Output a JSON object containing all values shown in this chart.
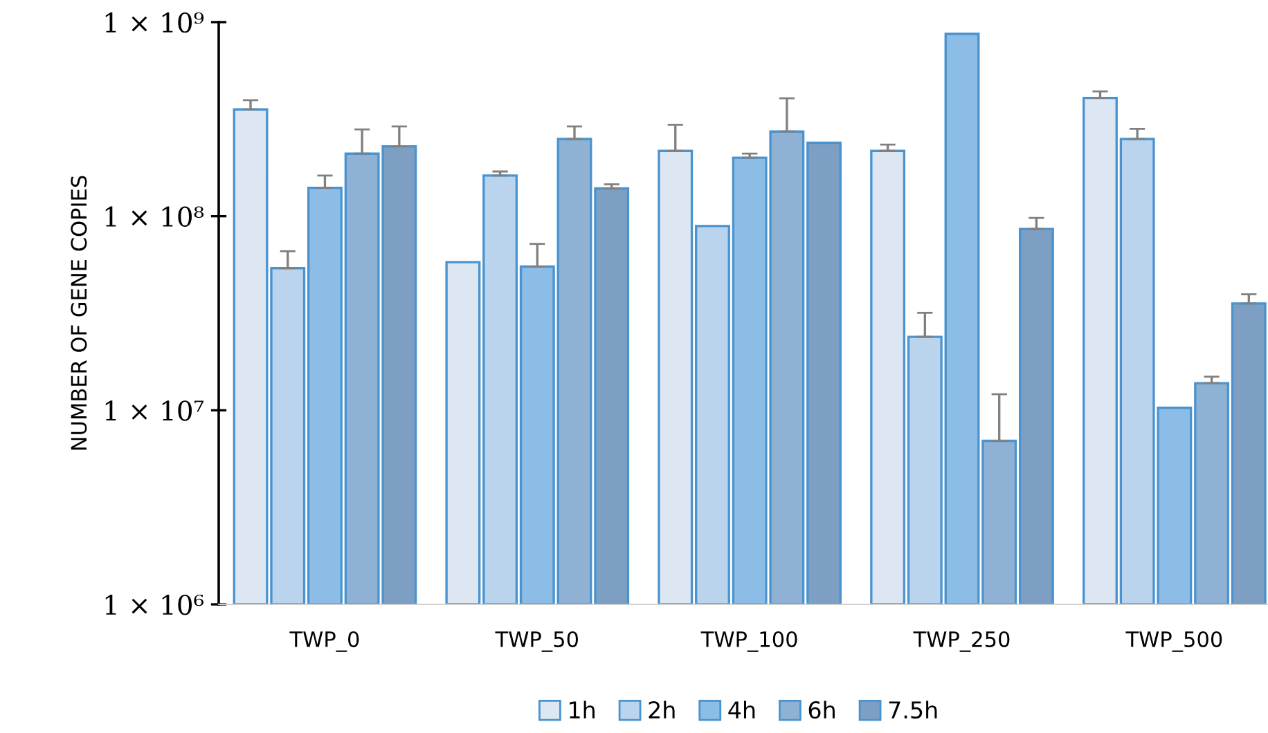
{
  "chart_data": {
    "type": "bar",
    "ylabel": "NUMBER OF GENE COPIES",
    "categories": [
      "TWP_0",
      "TWP_50",
      "TWP_100",
      "TWP_250",
      "TWP_500"
    ],
    "log": true,
    "ylim": [
      1000000,
      1000000000
    ],
    "yticks": [
      {
        "value": 1000000,
        "label": "1 × 10⁶"
      },
      {
        "value": 10000000,
        "label": "1 × 10⁷"
      },
      {
        "value": 100000000,
        "label": "1 × 10⁸"
      },
      {
        "value": 1000000000,
        "label": "1 × 10⁹"
      }
    ],
    "grid": false,
    "legend": "bottom",
    "series": [
      {
        "name": "1h",
        "color": "#dce7f3",
        "values": [
          355000000,
          58000000,
          217000000,
          217000000,
          407000000
        ],
        "errors": [
          [
            355000000,
            396000000
          ],
          null,
          [
            217000000,
            296000000
          ],
          [
            217000000,
            234000000
          ],
          [
            407000000,
            440000000
          ]
        ]
      },
      {
        "name": "2h",
        "color": "#bad4ed",
        "values": [
          54000000,
          162000000,
          89000000,
          23900000,
          250000000
        ],
        "errors": [
          [
            54000000,
            66000000
          ],
          [
            162000000,
            170000000
          ],
          null,
          [
            23900000,
            31800000
          ],
          [
            250000000,
            282000000
          ]
        ]
      },
      {
        "name": "4h",
        "color": "#8cbde6",
        "values": [
          140000000,
          55000000,
          200000000,
          870000000,
          10300000
        ],
        "errors": [
          [
            140000000,
            162000000
          ],
          [
            55000000,
            72000000
          ],
          [
            200000000,
            210000000
          ],
          null,
          null
        ]
      },
      {
        "name": "6h",
        "color": "#8fb2d4",
        "values": [
          210000000,
          250000000,
          273000000,
          6960000,
          13800000
        ],
        "errors": [
          [
            210000000,
            280000000
          ],
          [
            250000000,
            290000000
          ],
          [
            273000000,
            405000000
          ],
          [
            6960000,
            12100000
          ],
          [
            13800000,
            14900000
          ]
        ]
      },
      {
        "name": "7.5h",
        "color": "#7c9fc3",
        "values": [
          229000000,
          139000000,
          239000000,
          86000000,
          35500000
        ],
        "errors": [
          [
            229000000,
            290000000
          ],
          [
            139000000,
            146000000
          ],
          null,
          [
            86000000,
            98000000
          ],
          [
            35500000,
            39600000
          ]
        ]
      }
    ]
  }
}
